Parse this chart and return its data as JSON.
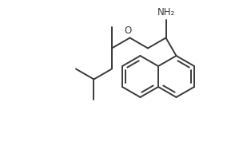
{
  "bg_color": "#ffffff",
  "line_color": "#3a3a3a",
  "line_width": 1.4,
  "font_size": 8.5,
  "NH2_text": "NH₂",
  "O_text": "O"
}
